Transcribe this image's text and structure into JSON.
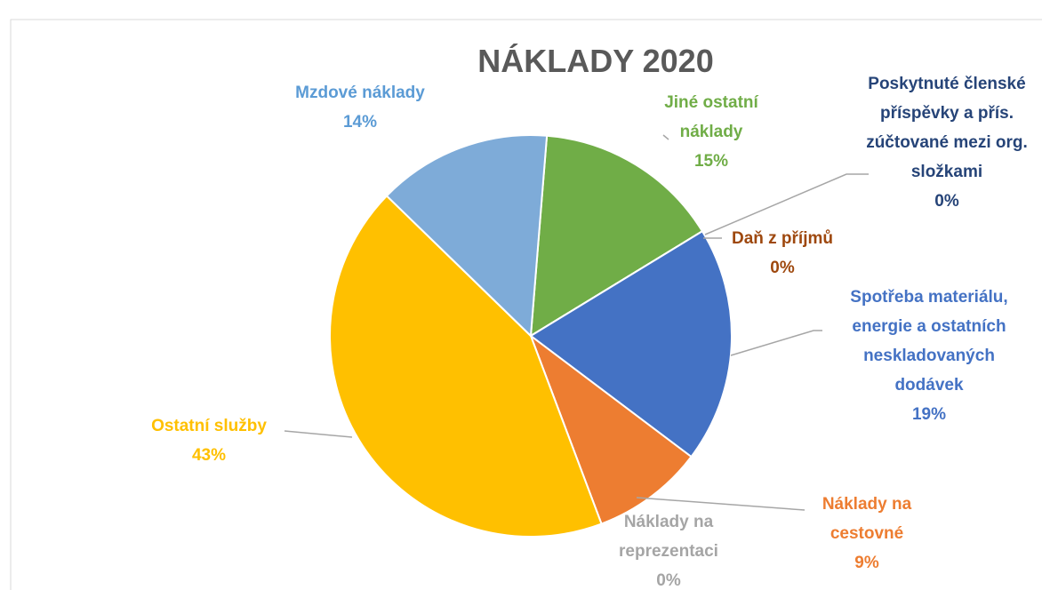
{
  "chart_data": {
    "type": "pie",
    "title": "NÁKLADY 2020",
    "categories": [
      "Jiné ostatní náklady",
      "Poskytnuté členské příspěvky a přís. zúčtované mezi org. složkami",
      "Daň z příjmů",
      "Spotřeba materiálu, energie a ostatních neskladovaných dodávek",
      "Náklady na cestovné",
      "Náklady na reprezentaci",
      "Ostatní služby",
      "Mzdové náklady"
    ],
    "values": [
      15,
      0,
      0,
      19,
      9,
      0,
      43,
      14
    ],
    "value_labels": [
      "15%",
      "0%",
      "0%",
      "19%",
      "9%",
      "0%",
      "43%",
      "14%"
    ],
    "colors": [
      "#70ad47",
      "#264478",
      "#9e480e",
      "#4472c4",
      "#ed7d31",
      "#a5a5a5",
      "#ffc000",
      "#7eabd8"
    ]
  }
}
